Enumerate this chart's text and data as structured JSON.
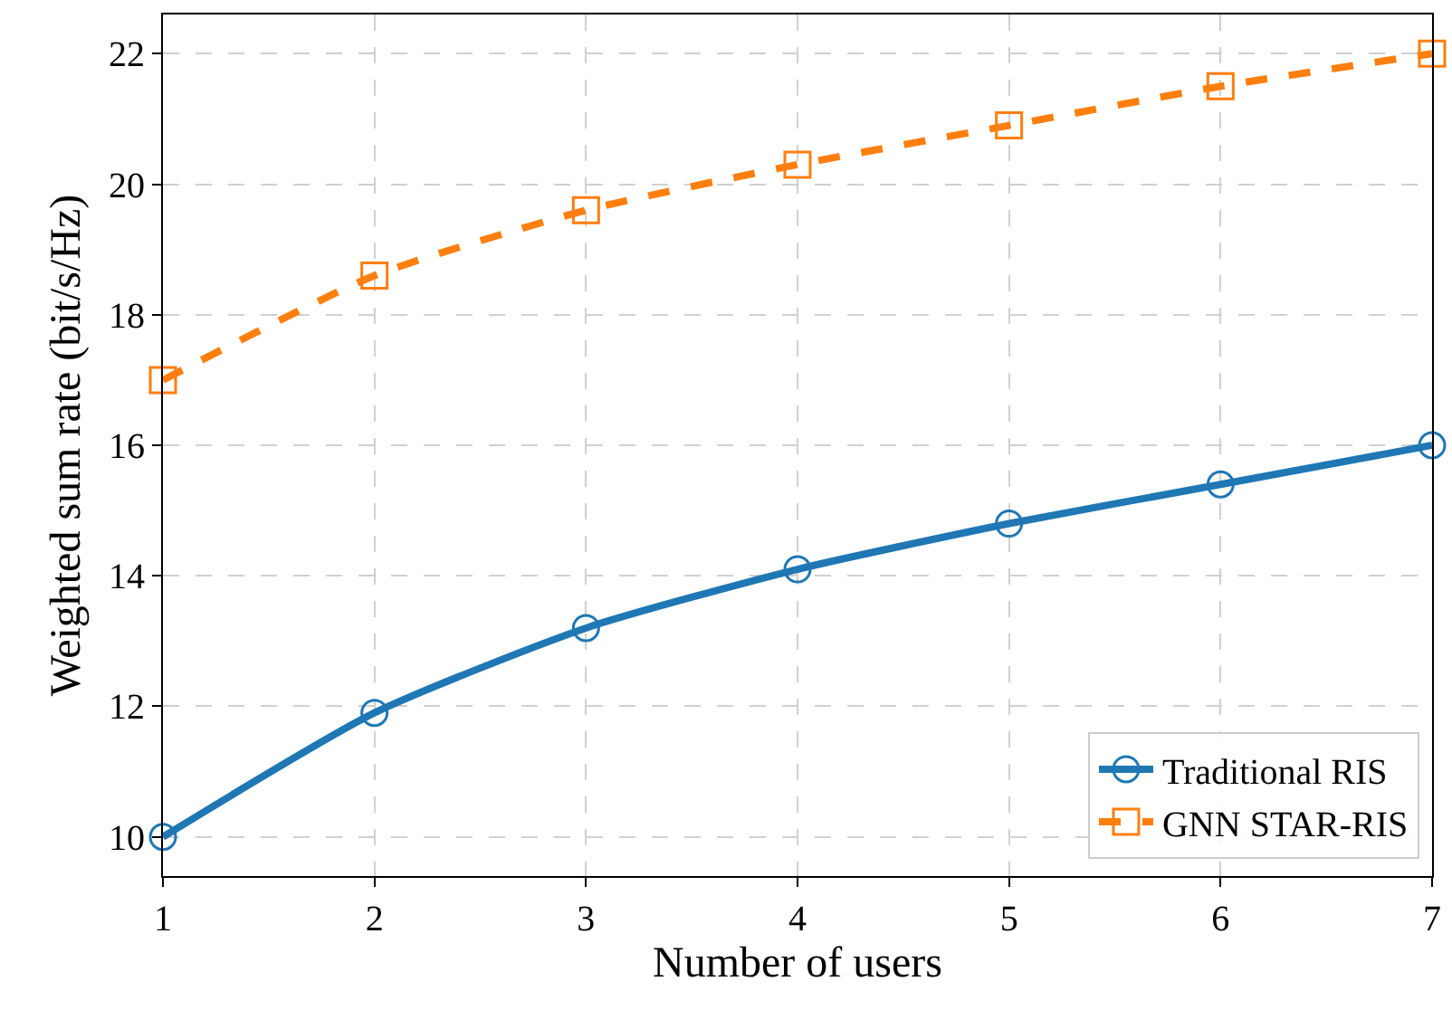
{
  "chart_data": {
    "type": "line",
    "xlabel": "Number of users",
    "ylabel": "Weighted sum rate (bit/s/Hz)",
    "x": [
      1,
      2,
      3,
      4,
      5,
      6,
      7
    ],
    "series": [
      {
        "name": "Traditional RIS",
        "color": "#1f77b4",
        "values": [
          10.0,
          11.9,
          13.2,
          14.1,
          14.8,
          15.4,
          16.0
        ],
        "marker": "circle",
        "line_style": "solid"
      },
      {
        "name": "GNN STAR-RIS",
        "color": "#ff7f0e",
        "values": [
          17.0,
          18.6,
          19.6,
          20.3,
          20.9,
          21.5,
          22.0
        ],
        "marker": "square",
        "line_style": "dashed"
      }
    ],
    "xlim": [
      1,
      7
    ],
    "xticks": [
      1,
      2,
      3,
      4,
      5,
      6,
      7
    ],
    "ylim": [
      9.4,
      22.6
    ],
    "yticks": [
      10,
      12,
      14,
      16,
      18,
      20,
      22
    ],
    "grid": true,
    "legend": "bottom right"
  }
}
